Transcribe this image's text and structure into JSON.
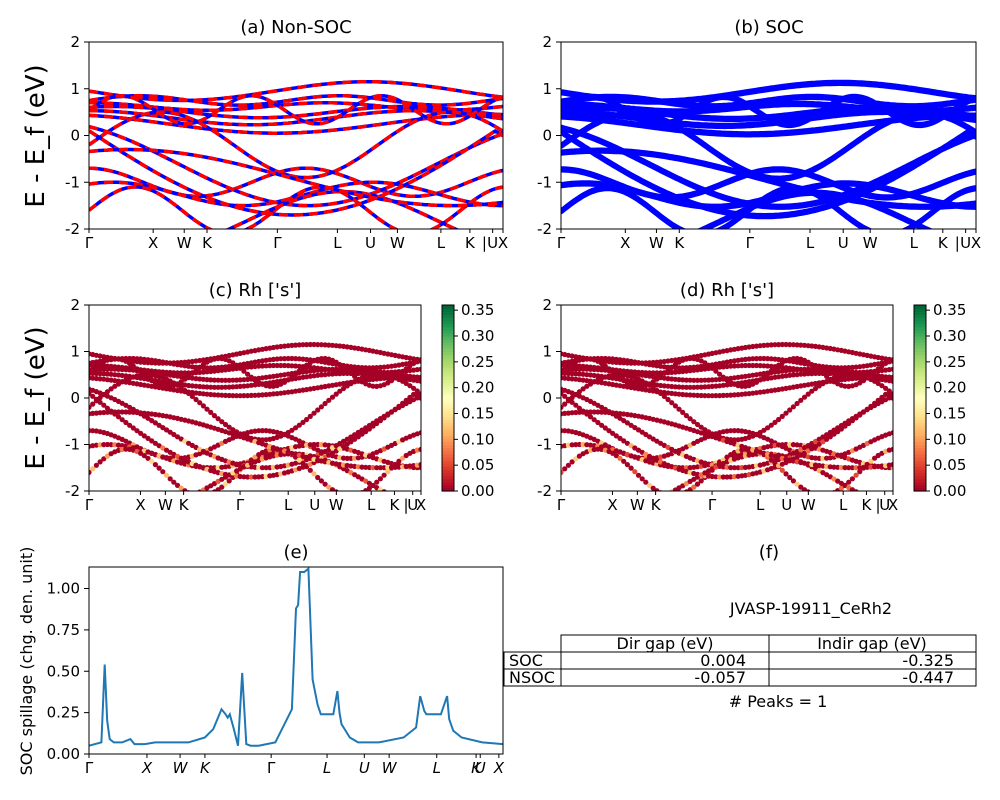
{
  "chart_data": [
    {
      "type": "line",
      "title": "(a) Non-SOC",
      "ylabel": "E - E_f (eV)",
      "ylim": [
        -2,
        2
      ],
      "yticks": [
        -2,
        -1,
        0,
        1,
        2
      ],
      "xtick_labels": [
        "Γ",
        "X",
        "W",
        "K",
        "Γ",
        "L",
        "U",
        "W",
        "L",
        "K",
        "|",
        "U",
        "X"
      ],
      "xtick_positions": [
        0,
        0.155,
        0.23,
        0.285,
        0.455,
        0.6,
        0.68,
        0.745,
        0.85,
        0.92,
        0.955,
        0.975,
        1.0
      ],
      "series": [
        {
          "kind": "bands",
          "color": "#ff0000",
          "style": "dashed"
        },
        {
          "kind": "bands",
          "color": "#0000ff",
          "style": "solid"
        }
      ]
    },
    {
      "type": "line",
      "title": "(b) SOC",
      "ylim": [
        -2,
        2
      ],
      "yticks": [
        -2,
        -1,
        0,
        1,
        2
      ],
      "xtick_labels": [
        "Γ",
        "X",
        "W",
        "K",
        "Γ",
        "L",
        "U",
        "W",
        "L",
        "K",
        "|",
        "U",
        "X"
      ],
      "xtick_positions": [
        0,
        0.155,
        0.23,
        0.285,
        0.455,
        0.6,
        0.68,
        0.745,
        0.85,
        0.92,
        0.955,
        0.975,
        1.0
      ],
      "series": [
        {
          "kind": "bands",
          "color": "#0000ff",
          "style": "solid"
        }
      ]
    },
    {
      "type": "scatter",
      "title": "(c)  Rh ['s']",
      "ylabel": "E - E_f (eV)",
      "ylim": [
        -2,
        2
      ],
      "yticks": [
        -2,
        -1,
        0,
        1,
        2
      ],
      "xtick_labels": [
        "Γ",
        "X",
        "W",
        "K",
        "Γ",
        "L",
        "U",
        "W",
        "L",
        "K",
        "|",
        "U",
        "X"
      ],
      "xtick_positions": [
        0,
        0.155,
        0.23,
        0.285,
        0.455,
        0.6,
        0.68,
        0.745,
        0.85,
        0.92,
        0.955,
        0.975,
        1.0
      ],
      "colorbar": {
        "range": [
          0,
          0.36
        ],
        "ticks": [
          "0.00",
          "0.05",
          "0.10",
          "0.15",
          "0.20",
          "0.25",
          "0.30",
          "0.35"
        ],
        "colormap": "RdYlGn"
      }
    },
    {
      "type": "scatter",
      "title": "(d) Rh ['s']",
      "ylim": [
        -2,
        2
      ],
      "yticks": [
        -2,
        -1,
        0,
        1,
        2
      ],
      "xtick_labels": [
        "Γ",
        "X",
        "W",
        "K",
        "Γ",
        "L",
        "U",
        "W",
        "L",
        "K",
        "|",
        "U",
        "X"
      ],
      "xtick_positions": [
        0,
        0.155,
        0.23,
        0.285,
        0.455,
        0.6,
        0.68,
        0.745,
        0.85,
        0.92,
        0.955,
        0.975,
        1.0
      ],
      "colorbar": {
        "range": [
          0,
          0.36
        ],
        "ticks": [
          "0.00",
          "0.05",
          "0.10",
          "0.15",
          "0.20",
          "0.25",
          "0.30",
          "0.35"
        ],
        "colormap": "RdYlGn"
      }
    },
    {
      "type": "line",
      "title": "(e)",
      "ylabel": "SOC spillage (chg. den. unit)",
      "ylim": [
        0,
        1.13
      ],
      "yticks": [
        "0.00",
        "0.25",
        "0.50",
        "0.75",
        "1.00"
      ],
      "xtick_labels": [
        "Γ",
        "X",
        "W",
        "K",
        "Γ",
        "L",
        "U",
        "W",
        "L",
        "K",
        "U",
        "X"
      ],
      "xtick_positions": [
        0,
        0.14,
        0.22,
        0.28,
        0.44,
        0.575,
        0.665,
        0.725,
        0.84,
        0.935,
        0.945,
        0.99
      ],
      "color": "#1f77b4",
      "x": [
        0,
        0.03,
        0.038,
        0.044,
        0.05,
        0.06,
        0.08,
        0.1,
        0.11,
        0.12,
        0.135,
        0.16,
        0.2,
        0.24,
        0.28,
        0.3,
        0.32,
        0.33,
        0.335,
        0.34,
        0.35,
        0.36,
        0.37,
        0.38,
        0.39,
        0.395,
        0.4,
        0.41,
        0.45,
        0.49,
        0.5,
        0.505,
        0.51,
        0.52,
        0.53,
        0.54,
        0.548,
        0.552,
        0.56,
        0.57,
        0.59,
        0.6,
        0.605,
        0.61,
        0.615,
        0.63,
        0.65,
        0.7,
        0.76,
        0.79,
        0.8,
        0.81,
        0.815,
        0.82,
        0.83,
        0.85,
        0.865,
        0.87,
        0.88,
        0.9,
        0.95,
        1.0
      ],
      "y": [
        0.05,
        0.07,
        0.54,
        0.2,
        0.09,
        0.07,
        0.07,
        0.09,
        0.06,
        0.06,
        0.06,
        0.07,
        0.07,
        0.07,
        0.1,
        0.15,
        0.27,
        0.24,
        0.22,
        0.24,
        0.15,
        0.05,
        0.49,
        0.06,
        0.05,
        0.05,
        0.05,
        0.05,
        0.07,
        0.27,
        0.88,
        0.9,
        1.1,
        1.1,
        1.12,
        0.45,
        0.35,
        0.3,
        0.24,
        0.24,
        0.24,
        0.38,
        0.25,
        0.18,
        0.16,
        0.1,
        0.07,
        0.07,
        0.1,
        0.16,
        0.35,
        0.26,
        0.24,
        0.24,
        0.24,
        0.24,
        0.35,
        0.21,
        0.14,
        0.1,
        0.07,
        0.06
      ]
    },
    {
      "type": "table",
      "title": "(f)",
      "caption": "JVASP-19911_CeRh2",
      "columns": [
        "Dir gap (eV)",
        "Indir gap (eV)"
      ],
      "rows": [
        {
          "label": "SOC",
          "values": [
            "0.004",
            "-0.325"
          ]
        },
        {
          "label": "NSOC",
          "values": [
            "-0.057",
            "-0.447"
          ]
        }
      ],
      "footer": "# Peaks = 1"
    }
  ]
}
